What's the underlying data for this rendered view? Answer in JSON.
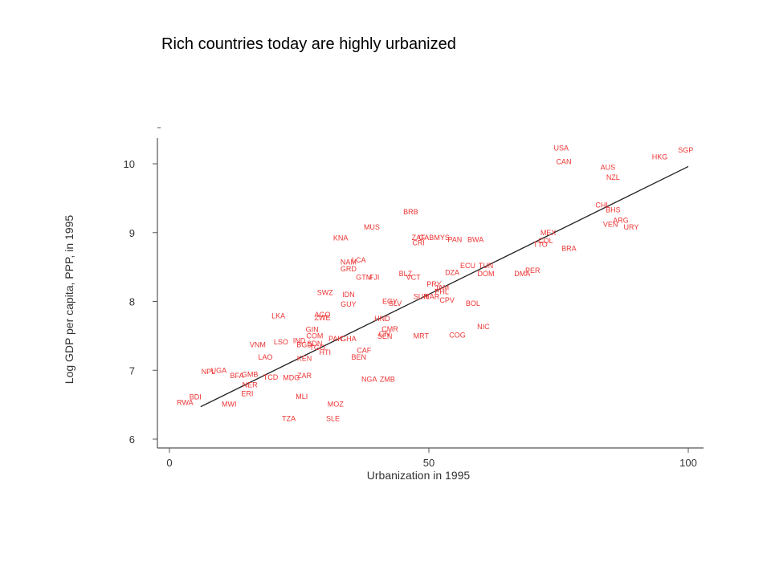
{
  "slide": {
    "title": "Rich countries today are highly urbanized"
  },
  "chart_data": {
    "type": "scatter",
    "title": "",
    "xlabel": "Urbanization in 1995",
    "ylabel": "Log GDP per capita, PPP, in 1995",
    "xlim": [
      -2,
      103
    ],
    "ylim": [
      5.85,
      10.5
    ],
    "xticks": [
      0,
      50,
      100
    ],
    "yticks": [
      6,
      7,
      8,
      9,
      10
    ],
    "grid": false,
    "colors": {
      "labels": "#ee3333",
      "fit_line": "#222222",
      "axes": "#555555"
    },
    "fit_line": {
      "x": [
        6,
        100
      ],
      "y": [
        6.47,
        9.96
      ]
    },
    "points": [
      {
        "label": "USA",
        "x": 75.5,
        "y": 10.23
      },
      {
        "label": "CAN",
        "x": 76,
        "y": 10.03
      },
      {
        "label": "SGP",
        "x": 99.5,
        "y": 10.2
      },
      {
        "label": "HKG",
        "x": 94.5,
        "y": 10.1
      },
      {
        "label": "AUS",
        "x": 84.5,
        "y": 9.95
      },
      {
        "label": "NZL",
        "x": 85.5,
        "y": 9.8
      },
      {
        "label": "CHL",
        "x": 83.5,
        "y": 9.4
      },
      {
        "label": "BHS",
        "x": 85.5,
        "y": 9.33
      },
      {
        "label": "ARG",
        "x": 87,
        "y": 9.18
      },
      {
        "label": "VEN",
        "x": 85,
        "y": 9.12
      },
      {
        "label": "URY",
        "x": 89,
        "y": 9.08
      },
      {
        "label": "MEX",
        "x": 73,
        "y": 9.0
      },
      {
        "label": "COL",
        "x": 72.5,
        "y": 8.88
      },
      {
        "label": "TTO",
        "x": 71.5,
        "y": 8.83
      },
      {
        "label": "BRA",
        "x": 77,
        "y": 8.77
      },
      {
        "label": "PER",
        "x": 70,
        "y": 8.45
      },
      {
        "label": "DMA",
        "x": 68,
        "y": 8.4
      },
      {
        "label": "BRB",
        "x": 46.5,
        "y": 9.3
      },
      {
        "label": "MUS",
        "x": 39,
        "y": 9.08
      },
      {
        "label": "KNA",
        "x": 33,
        "y": 8.92
      },
      {
        "label": "ZAF",
        "x": 48,
        "y": 8.93
      },
      {
        "label": "GAB",
        "x": 49.5,
        "y": 8.93
      },
      {
        "label": "MYS",
        "x": 52.5,
        "y": 8.93
      },
      {
        "label": "CRI",
        "x": 48,
        "y": 8.85
      },
      {
        "label": "PAN",
        "x": 55,
        "y": 8.9
      },
      {
        "label": "BWA",
        "x": 59,
        "y": 8.9
      },
      {
        "label": "LCA",
        "x": 36.5,
        "y": 8.6
      },
      {
        "label": "NAM",
        "x": 34.5,
        "y": 8.57
      },
      {
        "label": "GRD",
        "x": 34.5,
        "y": 8.47
      },
      {
        "label": "GTM",
        "x": 37.5,
        "y": 8.35
      },
      {
        "label": "FJI",
        "x": 39.5,
        "y": 8.35
      },
      {
        "label": "BLZ",
        "x": 45.5,
        "y": 8.4
      },
      {
        "label": "VCT",
        "x": 47,
        "y": 8.35
      },
      {
        "label": "ECU",
        "x": 57.5,
        "y": 8.52
      },
      {
        "label": "TUN",
        "x": 61,
        "y": 8.52
      },
      {
        "label": "DZA",
        "x": 54.5,
        "y": 8.42
      },
      {
        "label": "DOM",
        "x": 61,
        "y": 8.4
      },
      {
        "label": "PRY",
        "x": 51,
        "y": 8.25
      },
      {
        "label": "JAM",
        "x": 52.5,
        "y": 8.2
      },
      {
        "label": "PHL",
        "x": 52.5,
        "y": 8.14
      },
      {
        "label": "SUR",
        "x": 48.5,
        "y": 8.07
      },
      {
        "label": "MAR",
        "x": 50.5,
        "y": 8.07
      },
      {
        "label": "CPV",
        "x": 53.5,
        "y": 8.02
      },
      {
        "label": "SWZ",
        "x": 30,
        "y": 8.13
      },
      {
        "label": "IDN",
        "x": 34.5,
        "y": 8.1
      },
      {
        "label": "GUY",
        "x": 34.5,
        "y": 7.96
      },
      {
        "label": "EGY",
        "x": 42.5,
        "y": 8.0
      },
      {
        "label": "SLV",
        "x": 43.5,
        "y": 7.97
      },
      {
        "label": "BOL",
        "x": 58.5,
        "y": 7.97
      },
      {
        "label": "LKA",
        "x": 21,
        "y": 7.79
      },
      {
        "label": "AGO",
        "x": 29.5,
        "y": 7.81
      },
      {
        "label": "ZWE",
        "x": 29.5,
        "y": 7.76
      },
      {
        "label": "HND",
        "x": 41,
        "y": 7.75
      },
      {
        "label": "NIC",
        "x": 60.5,
        "y": 7.63
      },
      {
        "label": "GIN",
        "x": 27.5,
        "y": 7.59
      },
      {
        "label": "CMR",
        "x": 42.5,
        "y": 7.6
      },
      {
        "label": "COM",
        "x": 28,
        "y": 7.5
      },
      {
        "label": "CIV",
        "x": 41.5,
        "y": 7.53
      },
      {
        "label": "SEN",
        "x": 41.5,
        "y": 7.49
      },
      {
        "label": "MRT",
        "x": 48.5,
        "y": 7.5
      },
      {
        "label": "COG",
        "x": 55.5,
        "y": 7.51
      },
      {
        "label": "PAK",
        "x": 32,
        "y": 7.46
      },
      {
        "label": "GHA",
        "x": 34.5,
        "y": 7.46
      },
      {
        "label": "LSO",
        "x": 21.5,
        "y": 7.41
      },
      {
        "label": "IND",
        "x": 25,
        "y": 7.43
      },
      {
        "label": "BGD",
        "x": 26,
        "y": 7.37
      },
      {
        "label": "SDN",
        "x": 28,
        "y": 7.39
      },
      {
        "label": "TGO",
        "x": 28.5,
        "y": 7.33
      },
      {
        "label": "VNM",
        "x": 17,
        "y": 7.37
      },
      {
        "label": "HTI",
        "x": 30,
        "y": 7.26
      },
      {
        "label": "CAF",
        "x": 37.5,
        "y": 7.29
      },
      {
        "label": "BEN",
        "x": 36.5,
        "y": 7.19
      },
      {
        "label": "LAO",
        "x": 18.5,
        "y": 7.19
      },
      {
        "label": "KEN",
        "x": 26,
        "y": 7.17
      },
      {
        "label": "NPL",
        "x": 7.5,
        "y": 6.98
      },
      {
        "label": "UGA",
        "x": 9.5,
        "y": 7.0
      },
      {
        "label": "BFA",
        "x": 13,
        "y": 6.92
      },
      {
        "label": "BDI",
        "x": 5,
        "y": 6.61
      },
      {
        "label": "RWA",
        "x": 3,
        "y": 6.53
      },
      {
        "label": "GMB",
        "x": 15.5,
        "y": 6.94
      },
      {
        "label": "TCD",
        "x": 19.5,
        "y": 6.9
      },
      {
        "label": "MDG",
        "x": 23.5,
        "y": 6.89
      },
      {
        "label": "ZAR",
        "x": 26,
        "y": 6.92
      },
      {
        "label": "NGA",
        "x": 38.5,
        "y": 6.87
      },
      {
        "label": "ZMB",
        "x": 42,
        "y": 6.87
      },
      {
        "label": "NER",
        "x": 15.5,
        "y": 6.79
      },
      {
        "label": "ERI",
        "x": 15,
        "y": 6.66
      },
      {
        "label": "MWI",
        "x": 11.5,
        "y": 6.51
      },
      {
        "label": "MLI",
        "x": 25.5,
        "y": 6.62
      },
      {
        "label": "MOZ",
        "x": 32,
        "y": 6.51
      },
      {
        "label": "TZA",
        "x": 23,
        "y": 6.3
      },
      {
        "label": "SLE",
        "x": 31.5,
        "y": 6.3
      }
    ]
  }
}
